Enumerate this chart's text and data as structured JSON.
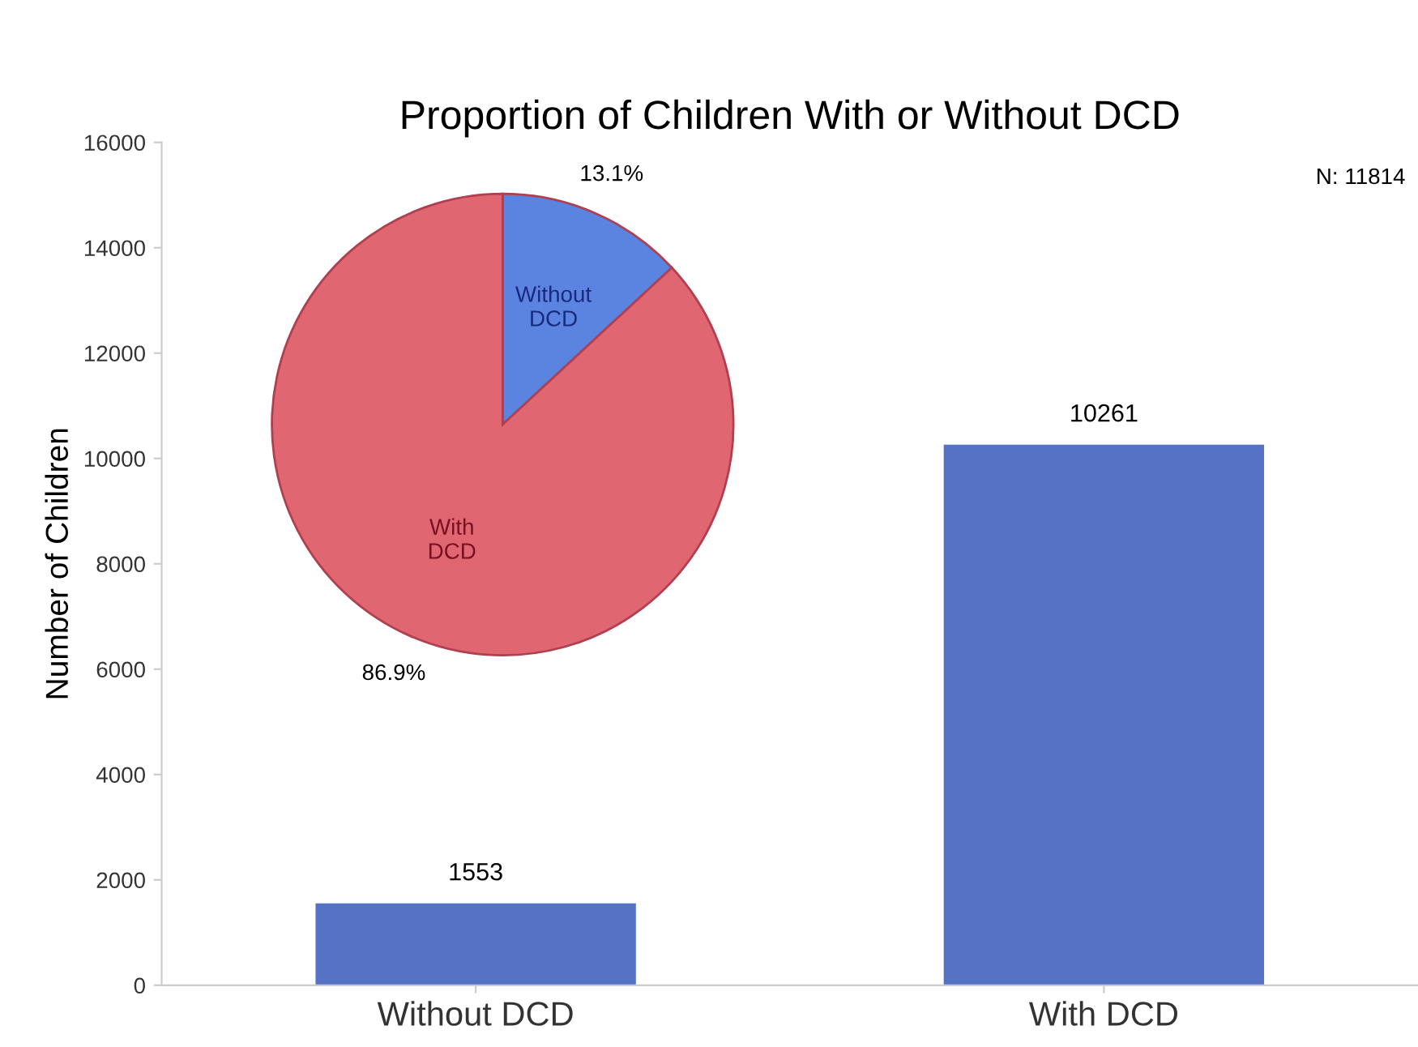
{
  "chart_data": [
    {
      "type": "bar",
      "title": "Proportion of Children With or Without DCD",
      "ylabel": "Number of Children",
      "categories": [
        "Without DCD",
        "With DCD"
      ],
      "values": [
        1553,
        10261
      ],
      "color": "#5572c4",
      "ylim": [
        0,
        16000
      ],
      "yticks": [
        0,
        2000,
        4000,
        6000,
        8000,
        10000,
        12000,
        14000,
        16000
      ],
      "data_labels": true,
      "grid": false,
      "annotations": [
        "N: 11814"
      ]
    },
    {
      "type": "pie",
      "categories": [
        "Without\nDCD",
        "With\nDCD"
      ],
      "values": [
        13.1,
        86.9
      ],
      "colors": [
        "#5b84e0",
        "#e06672"
      ],
      "value_labels": [
        "13.1%",
        "86.9%"
      ]
    }
  ]
}
